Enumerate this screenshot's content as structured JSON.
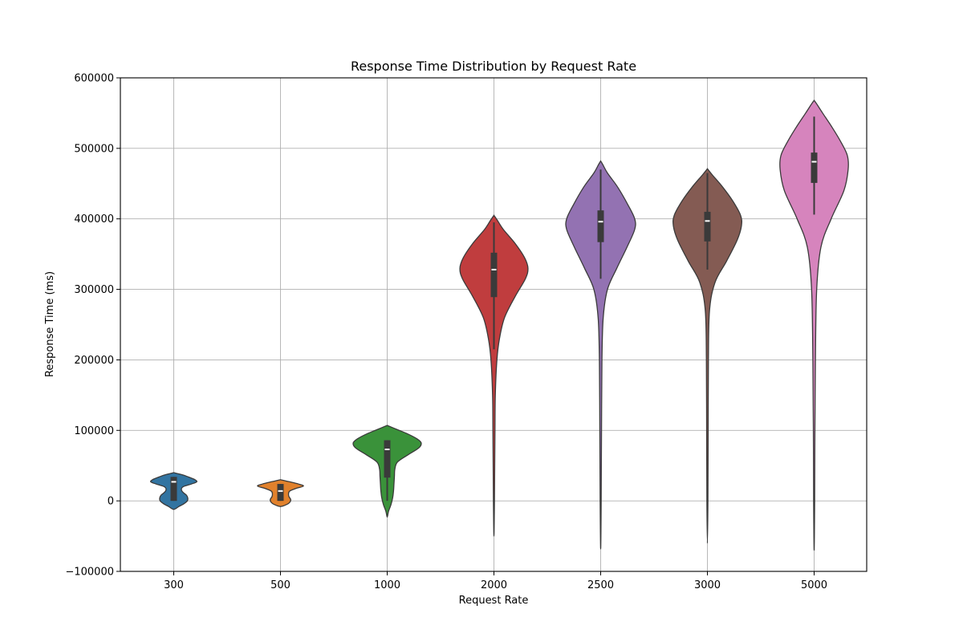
{
  "chart_data": {
    "type": "violin",
    "title": "Response Time Distribution by Request Rate",
    "xlabel": "Request Rate",
    "ylabel": "Response Time (ms)",
    "ylim": [
      -100000,
      600000
    ],
    "yticks": [
      "−100000",
      "0",
      "100000",
      "200000",
      "300000",
      "400000",
      "500000",
      "600000"
    ],
    "ytick_values": [
      -100000,
      0,
      100000,
      200000,
      300000,
      400000,
      500000,
      600000
    ],
    "grid": true,
    "categories": [
      "300",
      "500",
      "1000",
      "2000",
      "2500",
      "3000",
      "5000"
    ],
    "series": [
      {
        "category": "300",
        "color": "#3274a1",
        "min": -12000,
        "max": 40000,
        "q1": 0,
        "median": 27000,
        "q3": 34000,
        "whisker_low": 0,
        "whisker_high": 34000,
        "density": [
          [
            -12000,
            0.02
          ],
          [
            -8000,
            0.12
          ],
          [
            -4000,
            0.24
          ],
          [
            0,
            0.32
          ],
          [
            4000,
            0.33
          ],
          [
            8000,
            0.3
          ],
          [
            12000,
            0.22
          ],
          [
            16000,
            0.18
          ],
          [
            20000,
            0.22
          ],
          [
            24000,
            0.42
          ],
          [
            27000,
            0.54
          ],
          [
            30000,
            0.5
          ],
          [
            34000,
            0.34
          ],
          [
            37000,
            0.2
          ],
          [
            40000,
            0.02
          ]
        ]
      },
      {
        "category": "500",
        "color": "#e1812c",
        "min": -8000,
        "max": 30000,
        "q1": 0,
        "median": 14000,
        "q3": 24000,
        "whisker_low": 0,
        "whisker_high": 24000,
        "density": [
          [
            -8000,
            0.02
          ],
          [
            -5000,
            0.15
          ],
          [
            -2000,
            0.22
          ],
          [
            2000,
            0.24
          ],
          [
            6000,
            0.2
          ],
          [
            10000,
            0.19
          ],
          [
            14000,
            0.22
          ],
          [
            18000,
            0.38
          ],
          [
            21000,
            0.54
          ],
          [
            24000,
            0.42
          ],
          [
            27000,
            0.22
          ],
          [
            30000,
            0.02
          ]
        ]
      },
      {
        "category": "1000",
        "color": "#3a923a",
        "min": -23000,
        "max": 107000,
        "q1": 33000,
        "median": 73000,
        "q3": 86000,
        "whisker_low": 0,
        "whisker_high": 86000,
        "density": [
          [
            -23000,
            0.005
          ],
          [
            -15000,
            0.03
          ],
          [
            -5000,
            0.09
          ],
          [
            5000,
            0.13
          ],
          [
            15000,
            0.15
          ],
          [
            25000,
            0.16
          ],
          [
            35000,
            0.17
          ],
          [
            45000,
            0.18
          ],
          [
            55000,
            0.24
          ],
          [
            65000,
            0.48
          ],
          [
            75000,
            0.74
          ],
          [
            82000,
            0.8
          ],
          [
            88000,
            0.7
          ],
          [
            95000,
            0.48
          ],
          [
            101000,
            0.24
          ],
          [
            107000,
            0.02
          ]
        ]
      },
      {
        "category": "2000",
        "color": "#c03d3e",
        "min": -50000,
        "max": 405000,
        "q1": 289000,
        "median": 328000,
        "q3": 352000,
        "whisker_low": 215000,
        "whisker_high": 395000,
        "density": [
          [
            -50000,
            0.004
          ],
          [
            0,
            0.012
          ],
          [
            50000,
            0.018
          ],
          [
            100000,
            0.024
          ],
          [
            150000,
            0.032
          ],
          [
            200000,
            0.07
          ],
          [
            230000,
            0.13
          ],
          [
            260000,
            0.25
          ],
          [
            290000,
            0.5
          ],
          [
            315000,
            0.74
          ],
          [
            330000,
            0.8
          ],
          [
            345000,
            0.72
          ],
          [
            365000,
            0.5
          ],
          [
            385000,
            0.22
          ],
          [
            398000,
            0.08
          ],
          [
            405000,
            0.02
          ]
        ]
      },
      {
        "category": "2500",
        "color": "#9372b2",
        "min": -68000,
        "max": 482000,
        "q1": 367000,
        "median": 396000,
        "q3": 412000,
        "whisker_low": 315000,
        "whisker_high": 470000,
        "density": [
          [
            -68000,
            0.004
          ],
          [
            0,
            0.012
          ],
          [
            100000,
            0.02
          ],
          [
            200000,
            0.03
          ],
          [
            260000,
            0.06
          ],
          [
            300000,
            0.16
          ],
          [
            330000,
            0.38
          ],
          [
            360000,
            0.62
          ],
          [
            385000,
            0.8
          ],
          [
            400000,
            0.8
          ],
          [
            420000,
            0.64
          ],
          [
            445000,
            0.4
          ],
          [
            465000,
            0.16
          ],
          [
            477000,
            0.05
          ],
          [
            482000,
            0.02
          ]
        ]
      },
      {
        "category": "3000",
        "color": "#845b53",
        "min": -60000,
        "max": 471000,
        "q1": 368000,
        "median": 397000,
        "q3": 410000,
        "whisker_low": 328000,
        "whisker_high": 465000,
        "density": [
          [
            -60000,
            0.004
          ],
          [
            0,
            0.012
          ],
          [
            100000,
            0.018
          ],
          [
            200000,
            0.024
          ],
          [
            270000,
            0.05
          ],
          [
            310000,
            0.18
          ],
          [
            340000,
            0.45
          ],
          [
            370000,
            0.7
          ],
          [
            390000,
            0.8
          ],
          [
            405000,
            0.78
          ],
          [
            425000,
            0.6
          ],
          [
            445000,
            0.36
          ],
          [
            462000,
            0.12
          ],
          [
            471000,
            0.02
          ]
        ]
      },
      {
        "category": "5000",
        "color": "#d684bd",
        "min": -70000,
        "max": 568000,
        "q1": 451000,
        "median": 481000,
        "q3": 494000,
        "whisker_low": 406000,
        "whisker_high": 545000,
        "density": [
          [
            -70000,
            0.004
          ],
          [
            0,
            0.012
          ],
          [
            100000,
            0.018
          ],
          [
            200000,
            0.03
          ],
          [
            300000,
            0.06
          ],
          [
            360000,
            0.16
          ],
          [
            400000,
            0.4
          ],
          [
            440000,
            0.7
          ],
          [
            470000,
            0.8
          ],
          [
            490000,
            0.78
          ],
          [
            510000,
            0.62
          ],
          [
            530000,
            0.42
          ],
          [
            550000,
            0.2
          ],
          [
            563000,
            0.06
          ],
          [
            568000,
            0.02
          ]
        ]
      }
    ]
  }
}
